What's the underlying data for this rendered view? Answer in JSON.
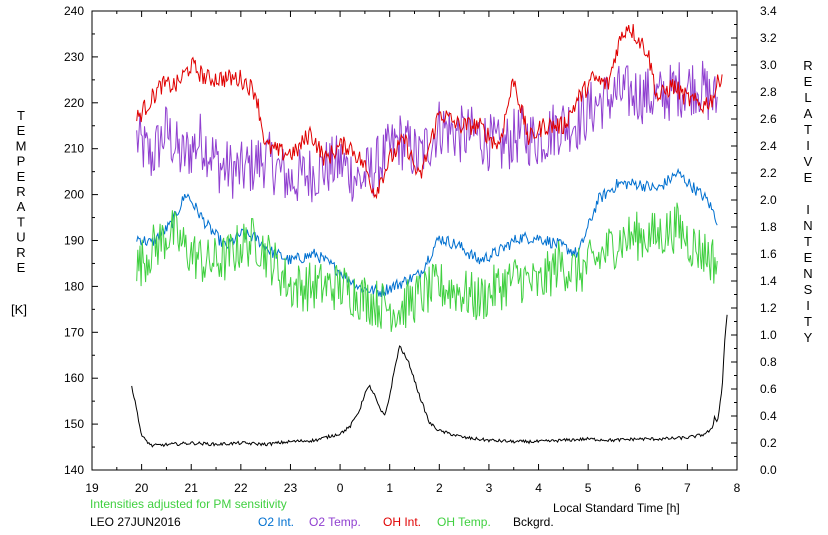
{
  "chart_data": {
    "type": "line",
    "left_axis": {
      "label_letters": [
        "T",
        "E",
        "M",
        "P",
        "E",
        "R",
        "A",
        "T",
        "U",
        "R",
        "E"
      ],
      "unit": "[K]",
      "range": [
        140,
        240
      ],
      "ticks": [
        "140",
        "150",
        "160",
        "170",
        "180",
        "190",
        "200",
        "210",
        "220",
        "230",
        "240"
      ]
    },
    "right_axis": {
      "label_top_letters": [
        "R",
        "E",
        "L",
        "A",
        "T",
        "I",
        "V",
        "E"
      ],
      "label_bottom_letters": [
        "I",
        "N",
        "T",
        "E",
        "N",
        "S",
        "I",
        "T",
        "Y"
      ],
      "range": [
        0.0,
        3.4
      ],
      "ticks": [
        "0.0",
        "0.2",
        "0.4",
        "0.6",
        "0.8",
        "1.0",
        "1.2",
        "1.4",
        "1.6",
        "1.8",
        "2.0",
        "2.2",
        "2.4",
        "2.6",
        "2.8",
        "3.0",
        "3.2",
        "3.4"
      ]
    },
    "x_axis": {
      "label": "Local Standard Time [h]",
      "range": [
        19,
        32
      ],
      "ticks": [
        "19",
        "20",
        "21",
        "22",
        "23",
        "0",
        "1",
        "2",
        "3",
        "4",
        "5",
        "6",
        "7",
        "8"
      ]
    },
    "note": "Intensities adjusted for PM sensitivity",
    "station_date": "LEO 27JUN2016",
    "series": [
      {
        "name": "O2 Int.",
        "color": "#0070d0",
        "axis": "right",
        "noise": 0.045,
        "x": [
          19.9,
          20.2,
          20.6,
          20.9,
          21.3,
          21.7,
          22.0,
          22.3,
          22.6,
          23.0,
          23.5,
          24.0,
          24.4,
          24.8,
          25.2,
          25.6,
          26.0,
          26.4,
          26.8,
          27.2,
          27.6,
          28.0,
          28.4,
          28.8,
          29.2,
          29.6,
          30.0,
          30.4,
          30.8,
          31.1,
          31.4,
          31.6
        ],
        "y": [
          1.72,
          1.68,
          1.82,
          2.05,
          1.82,
          1.65,
          1.75,
          1.72,
          1.62,
          1.55,
          1.6,
          1.47,
          1.35,
          1.32,
          1.38,
          1.45,
          1.72,
          1.66,
          1.55,
          1.62,
          1.72,
          1.72,
          1.67,
          1.6,
          2.0,
          2.12,
          2.12,
          2.08,
          2.2,
          2.1,
          2.0,
          1.85
        ]
      },
      {
        "name": "O2 Temp.",
        "color": "#9040d0",
        "axis": "left",
        "noise": 6.5,
        "x": [
          19.9,
          20.2,
          20.5,
          20.8,
          21.2,
          21.6,
          22.0,
          22.5,
          23.0,
          23.5,
          24.0,
          24.4,
          24.8,
          25.2,
          25.6,
          26.0,
          26.4,
          26.8,
          27.2,
          27.6,
          28.0,
          28.4,
          28.8,
          29.2,
          29.6,
          30.0,
          30.4,
          30.8,
          31.2,
          31.6
        ],
        "y": [
          212,
          208,
          214,
          208,
          212,
          206,
          205,
          208,
          203,
          205,
          207,
          203,
          207,
          212,
          208,
          215,
          213,
          213,
          210,
          213,
          212,
          215,
          216,
          220,
          222,
          222,
          221,
          223,
          224,
          220
        ]
      },
      {
        "name": "OH Int.",
        "color": "#e00000",
        "axis": "right",
        "noise": 0.07,
        "x": [
          19.9,
          20.1,
          20.4,
          20.7,
          21.0,
          21.3,
          21.6,
          22.0,
          22.3,
          22.5,
          22.8,
          23.1,
          23.4,
          23.7,
          24.0,
          24.2,
          24.5,
          24.7,
          25.0,
          25.3,
          25.6,
          26.0,
          26.4,
          26.8,
          27.2,
          27.5,
          27.8,
          28.1,
          28.5,
          28.8,
          29.1,
          29.4,
          29.6,
          29.8,
          30.2,
          30.4,
          30.7,
          31.0,
          31.3,
          31.5,
          31.7
        ],
        "y": [
          2.6,
          2.7,
          2.85,
          2.85,
          3.0,
          2.9,
          2.9,
          2.9,
          2.8,
          2.4,
          2.35,
          2.35,
          2.5,
          2.3,
          2.4,
          2.4,
          2.25,
          2.05,
          2.3,
          2.45,
          2.15,
          2.65,
          2.55,
          2.55,
          2.4,
          2.9,
          2.45,
          2.55,
          2.55,
          2.75,
          2.9,
          2.85,
          3.15,
          3.3,
          3.1,
          2.75,
          2.85,
          2.75,
          2.7,
          2.75,
          2.95
        ]
      },
      {
        "name": "OH Temp.",
        "color": "#40d040",
        "axis": "left",
        "noise": 5.5,
        "x": [
          19.9,
          20.2,
          20.6,
          20.9,
          21.3,
          21.7,
          22.0,
          22.3,
          22.6,
          23.0,
          23.5,
          24.0,
          24.4,
          24.8,
          25.2,
          25.6,
          26.0,
          26.4,
          26.8,
          27.2,
          27.6,
          28.0,
          28.4,
          28.8,
          29.2,
          29.6,
          30.0,
          30.4,
          30.8,
          31.1,
          31.4,
          31.6
        ],
        "y": [
          184,
          188,
          192,
          188,
          185,
          186,
          189,
          190,
          186,
          180,
          180,
          180,
          178,
          176,
          175,
          178,
          180,
          179,
          177,
          180,
          182,
          180,
          185,
          183,
          186,
          190,
          191,
          191,
          193,
          189,
          187,
          185
        ]
      },
      {
        "name": "Bckgrd.",
        "color": "#000000",
        "axis": "right",
        "noise": 0.012,
        "x": [
          19.8,
          19.9,
          20.0,
          20.2,
          20.6,
          21.0,
          21.5,
          22.0,
          22.5,
          23.0,
          23.5,
          23.8,
          24.0,
          24.2,
          24.4,
          24.5,
          24.6,
          24.7,
          24.8,
          24.9,
          25.0,
          25.1,
          25.2,
          25.4,
          25.6,
          25.8,
          26.0,
          26.5,
          27.0,
          27.5,
          28.0,
          28.5,
          29.0,
          29.5,
          30.0,
          30.5,
          31.0,
          31.3,
          31.5,
          31.55,
          31.6,
          31.7,
          31.75,
          31.8
        ],
        "y": [
          0.62,
          0.45,
          0.25,
          0.18,
          0.19,
          0.2,
          0.19,
          0.2,
          0.19,
          0.21,
          0.22,
          0.25,
          0.27,
          0.32,
          0.45,
          0.57,
          0.62,
          0.55,
          0.45,
          0.4,
          0.55,
          0.75,
          0.92,
          0.78,
          0.55,
          0.35,
          0.29,
          0.24,
          0.22,
          0.21,
          0.21,
          0.22,
          0.23,
          0.22,
          0.23,
          0.23,
          0.24,
          0.26,
          0.3,
          0.4,
          0.35,
          0.6,
          0.95,
          1.15
        ]
      }
    ]
  }
}
